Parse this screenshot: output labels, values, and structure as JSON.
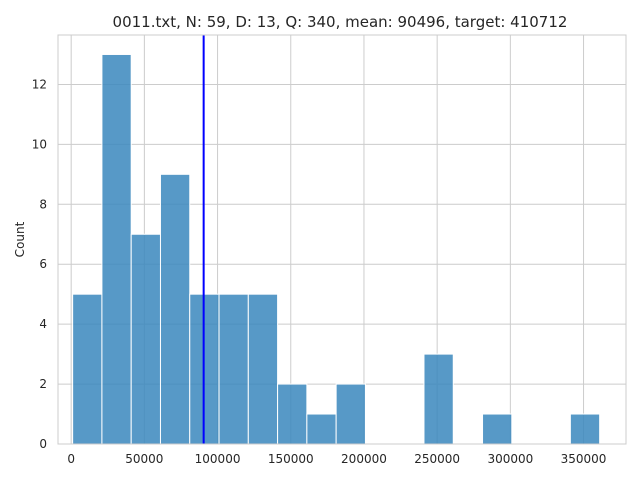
{
  "chart_data": {
    "type": "bar",
    "title": "0011.txt, N: 59, D: 13, Q: 340, mean: 90496, target: 410712",
    "xlabel": "",
    "ylabel": "Count",
    "xlim": [
      -9000,
      379000
    ],
    "ylim": [
      0,
      13.65
    ],
    "xticks": [
      0,
      50000,
      100000,
      150000,
      200000,
      250000,
      300000,
      350000
    ],
    "yticks": [
      0,
      2,
      4,
      6,
      8,
      10,
      12
    ],
    "grid": true,
    "bins": [
      {
        "x0": 1000,
        "x1": 21000,
        "count": 5
      },
      {
        "x0": 21000,
        "x1": 41000,
        "count": 13
      },
      {
        "x0": 41000,
        "x1": 61000,
        "count": 7
      },
      {
        "x0": 61000,
        "x1": 81000,
        "count": 9
      },
      {
        "x0": 81000,
        "x1": 101000,
        "count": 5
      },
      {
        "x0": 101000,
        "x1": 121000,
        "count": 5
      },
      {
        "x0": 121000,
        "x1": 141000,
        "count": 5
      },
      {
        "x0": 141000,
        "x1": 161000,
        "count": 2
      },
      {
        "x0": 161000,
        "x1": 181000,
        "count": 1
      },
      {
        "x0": 181000,
        "x1": 201000,
        "count": 2
      },
      {
        "x0": 201000,
        "x1": 221000,
        "count": 0
      },
      {
        "x0": 221000,
        "x1": 241000,
        "count": 0
      },
      {
        "x0": 241000,
        "x1": 261000,
        "count": 3
      },
      {
        "x0": 261000,
        "x1": 281000,
        "count": 0
      },
      {
        "x0": 281000,
        "x1": 301000,
        "count": 1
      },
      {
        "x0": 301000,
        "x1": 321000,
        "count": 0
      },
      {
        "x0": 321000,
        "x1": 341000,
        "count": 0
      },
      {
        "x0": 341000,
        "x1": 361000,
        "count": 1
      }
    ],
    "mean_line": {
      "x": 90496,
      "color": "#0000ff"
    },
    "bar_color": "#3a87bd"
  }
}
